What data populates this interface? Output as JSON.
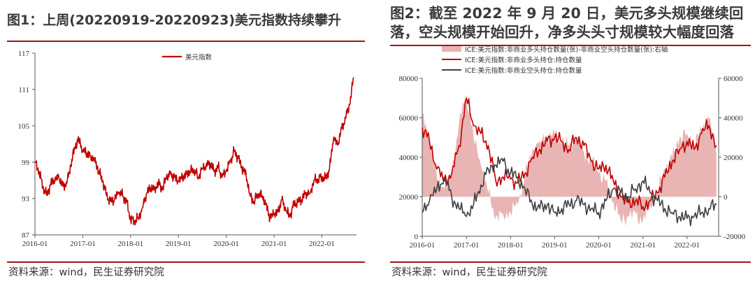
{
  "left": {
    "title": "图1：上周(20220919-20220923)美元指数持续攀升",
    "source": "资料来源：wind，民生证券研究院"
  },
  "right": {
    "title_line1": "图2：截至 2022 年 9 月 20 日，美元多头规模继续回",
    "title_line2": "落，空头规模开始回升，净多头头寸规模较大幅度回落",
    "source": "资料来源：wind，民生证券研究院"
  },
  "chart_data": [
    {
      "type": "line",
      "title": "",
      "xlabel": "",
      "ylabel": "",
      "x_ticks": [
        "2016-01",
        "2017-01",
        "2018-01",
        "2019-01",
        "2020-01",
        "2021-01",
        "2022-01"
      ],
      "y_ticks": [
        "87",
        "93",
        "99",
        "105",
        "111",
        "117"
      ],
      "ylim": [
        87,
        117
      ],
      "xlim": [
        "2016-01-01",
        "2022-09-23"
      ],
      "legend_position": "top-center",
      "color": "#c00000",
      "series": [
        {
          "name": "美元指数",
          "x": [
            "2016-01",
            "2016-02",
            "2016-03",
            "2016-04",
            "2016-05",
            "2016-06",
            "2016-07",
            "2016-08",
            "2016-09",
            "2016-10",
            "2016-11",
            "2016-12",
            "2017-01",
            "2017-02",
            "2017-03",
            "2017-04",
            "2017-05",
            "2017-06",
            "2017-07",
            "2017-08",
            "2017-09",
            "2017-10",
            "2017-11",
            "2017-12",
            "2018-01",
            "2018-02",
            "2018-03",
            "2018-04",
            "2018-05",
            "2018-06",
            "2018-07",
            "2018-08",
            "2018-09",
            "2018-10",
            "2018-11",
            "2018-12",
            "2019-01",
            "2019-02",
            "2019-03",
            "2019-04",
            "2019-05",
            "2019-06",
            "2019-07",
            "2019-08",
            "2019-09",
            "2019-10",
            "2019-11",
            "2019-12",
            "2020-01",
            "2020-02",
            "2020-03",
            "2020-04",
            "2020-05",
            "2020-06",
            "2020-07",
            "2020-08",
            "2020-09",
            "2020-10",
            "2020-11",
            "2020-12",
            "2021-01",
            "2021-02",
            "2021-03",
            "2021-04",
            "2021-05",
            "2021-06",
            "2021-07",
            "2021-08",
            "2021-09",
            "2021-10",
            "2021-11",
            "2021-12",
            "2022-01",
            "2022-02",
            "2022-03",
            "2022-04",
            "2022-05",
            "2022-06",
            "2022-07",
            "2022-08",
            "2022-09"
          ],
          "values": [
            99.0,
            97.5,
            95.0,
            93.5,
            95.5,
            96.0,
            96.5,
            95.0,
            95.5,
            98.5,
            101.5,
            102.8,
            101.0,
            100.5,
            100.0,
            99.5,
            97.5,
            96.0,
            93.5,
            92.5,
            92.8,
            94.0,
            93.5,
            92.5,
            89.5,
            89.3,
            89.8,
            91.5,
            93.8,
            94.8,
            94.5,
            95.5,
            94.5,
            96.5,
            97.0,
            96.5,
            95.8,
            96.5,
            97.0,
            97.5,
            97.8,
            96.5,
            98.0,
            98.5,
            98.8,
            97.5,
            98.2,
            96.5,
            97.5,
            99.0,
            100.8,
            99.8,
            98.0,
            97.0,
            93.5,
            92.5,
            93.8,
            93.5,
            92.0,
            89.8,
            90.5,
            90.8,
            92.8,
            91.0,
            90.0,
            92.0,
            92.5,
            92.8,
            94.0,
            93.8,
            96.0,
            96.2,
            96.5,
            96.3,
            98.0,
            103.0,
            101.8,
            104.5,
            106.2,
            108.5,
            113.0
          ]
        }
      ]
    },
    {
      "type": "line",
      "title": "",
      "xlabel": "",
      "ylabel": "",
      "x_ticks": [
        "2016-01",
        "2017-01",
        "2018-01",
        "2019-01",
        "2020-01",
        "2021-01",
        "2022-01"
      ],
      "y_left_ticks": [
        "0",
        "20000",
        "40000",
        "60000",
        "80000"
      ],
      "y_right_ticks": [
        "-20000",
        "0",
        "20000",
        "40000",
        "60000"
      ],
      "ylim_left": [
        0,
        80000
      ],
      "ylim_right": [
        -20000,
        60000
      ],
      "xlim": [
        "2016-01-01",
        "2022-09-20"
      ],
      "legend_position": "top",
      "series": [
        {
          "name": "ICE:美元指数:非商业多头持仓数量(张)-非商业空头持仓数量(张):右轴",
          "kind": "area",
          "axis": "right",
          "color": "#e8b4b4",
          "x": [
            "2016-01",
            "2016-03",
            "2016-05",
            "2016-07",
            "2016-09",
            "2016-11",
            "2017-01",
            "2017-03",
            "2017-05",
            "2017-07",
            "2017-09",
            "2017-11",
            "2018-01",
            "2018-03",
            "2018-05",
            "2018-07",
            "2018-09",
            "2018-11",
            "2019-01",
            "2019-03",
            "2019-05",
            "2019-07",
            "2019-09",
            "2019-11",
            "2020-01",
            "2020-03",
            "2020-05",
            "2020-07",
            "2020-09",
            "2020-11",
            "2021-01",
            "2021-03",
            "2021-05",
            "2021-07",
            "2021-09",
            "2021-11",
            "2022-01",
            "2022-03",
            "2022-05",
            "2022-07",
            "2022-09"
          ],
          "values": [
            42000,
            30000,
            10000,
            4000,
            12000,
            38000,
            52000,
            30000,
            16000,
            2000,
            -10000,
            -9000,
            -8000,
            -4000,
            10000,
            24000,
            28000,
            30000,
            32000,
            28000,
            26000,
            30000,
            22000,
            18000,
            12000,
            8000,
            -2000,
            -12000,
            -10000,
            -9000,
            -12000,
            -4000,
            2000,
            14000,
            20000,
            30000,
            32000,
            26000,
            34000,
            40000,
            22000
          ]
        },
        {
          "name": "ICE:美元指数:非商业多头持仓:持仓数量",
          "kind": "line",
          "axis": "left",
          "color": "#c00000",
          "x": [
            "2016-01",
            "2016-03",
            "2016-05",
            "2016-07",
            "2016-09",
            "2016-11",
            "2017-01",
            "2017-03",
            "2017-05",
            "2017-07",
            "2017-09",
            "2017-11",
            "2018-01",
            "2018-03",
            "2018-05",
            "2018-07",
            "2018-09",
            "2018-11",
            "2019-01",
            "2019-03",
            "2019-05",
            "2019-07",
            "2019-09",
            "2019-11",
            "2020-01",
            "2020-03",
            "2020-05",
            "2020-07",
            "2020-09",
            "2020-11",
            "2021-01",
            "2021-03",
            "2021-05",
            "2021-07",
            "2021-09",
            "2021-11",
            "2022-01",
            "2022-03",
            "2022-05",
            "2022-07",
            "2022-09"
          ],
          "values": [
            55000,
            48000,
            34000,
            28000,
            32000,
            46000,
            70000,
            56000,
            52000,
            46000,
            28000,
            30000,
            29000,
            27000,
            32000,
            40000,
            44000,
            48000,
            50000,
            48000,
            44000,
            50000,
            46000,
            38000,
            34000,
            36000,
            28000,
            20000,
            17000,
            18000,
            15000,
            18000,
            22000,
            30000,
            38000,
            44000,
            48000,
            44000,
            52000,
            56000,
            46000
          ]
        },
        {
          "name": "ICE:美元指数:非商业空头持仓:持仓数量",
          "kind": "line",
          "axis": "left",
          "color": "#404040",
          "x": [
            "2016-01",
            "2016-03",
            "2016-05",
            "2016-07",
            "2016-09",
            "2016-11",
            "2017-01",
            "2017-03",
            "2017-05",
            "2017-07",
            "2017-09",
            "2017-11",
            "2018-01",
            "2018-03",
            "2018-05",
            "2018-07",
            "2018-09",
            "2018-11",
            "2019-01",
            "2019-03",
            "2019-05",
            "2019-07",
            "2019-09",
            "2019-11",
            "2020-01",
            "2020-03",
            "2020-05",
            "2020-07",
            "2020-09",
            "2020-11",
            "2021-01",
            "2021-03",
            "2021-05",
            "2021-07",
            "2021-09",
            "2021-11",
            "2022-01",
            "2022-03",
            "2022-05",
            "2022-07",
            "2022-09"
          ],
          "values": [
            12000,
            18000,
            24000,
            30000,
            20000,
            14000,
            10000,
            16000,
            26000,
            34000,
            36000,
            38000,
            32000,
            30000,
            24000,
            16000,
            14000,
            16000,
            12000,
            14000,
            16000,
            18000,
            16000,
            14000,
            12000,
            18000,
            24000,
            22000,
            20000,
            24000,
            28000,
            22000,
            18000,
            14000,
            12000,
            10000,
            9000,
            10000,
            12000,
            14000,
            16000
          ]
        }
      ]
    }
  ]
}
